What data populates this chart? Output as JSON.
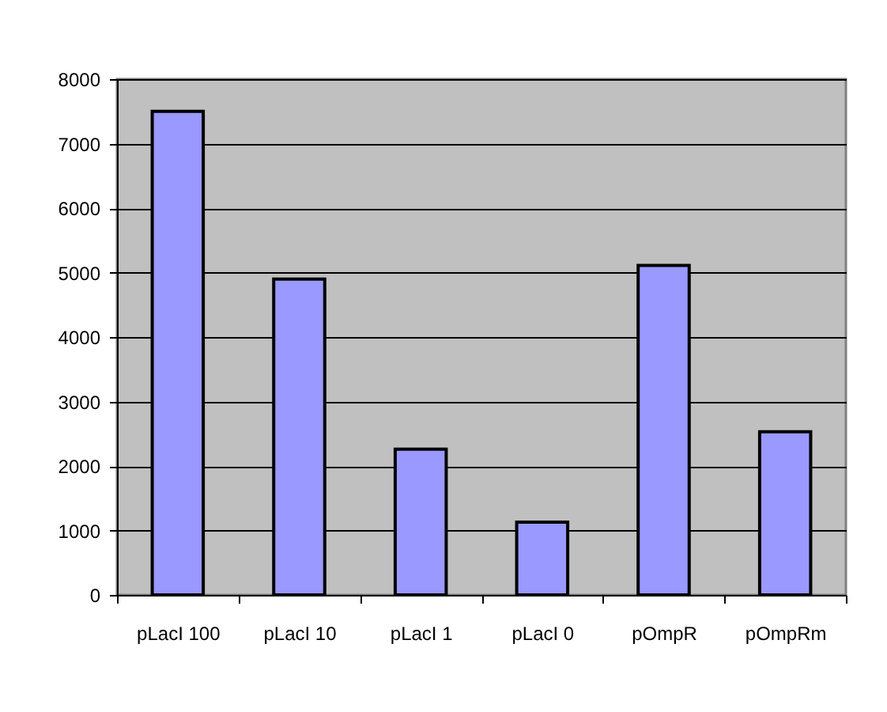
{
  "chart_data": {
    "type": "bar",
    "categories": [
      "pLacI 100",
      "pLacI 10",
      "pLacI 1",
      "pLacI 0",
      "pOmpR",
      "pOmpRm"
    ],
    "values": [
      7500,
      4900,
      2260,
      1130,
      5110,
      2530
    ],
    "color": "#9999ff",
    "ylim": [
      0,
      8000
    ],
    "yticks": [
      0,
      1000,
      2000,
      3000,
      4000,
      5000,
      6000,
      7000,
      8000
    ],
    "grid": "y"
  }
}
